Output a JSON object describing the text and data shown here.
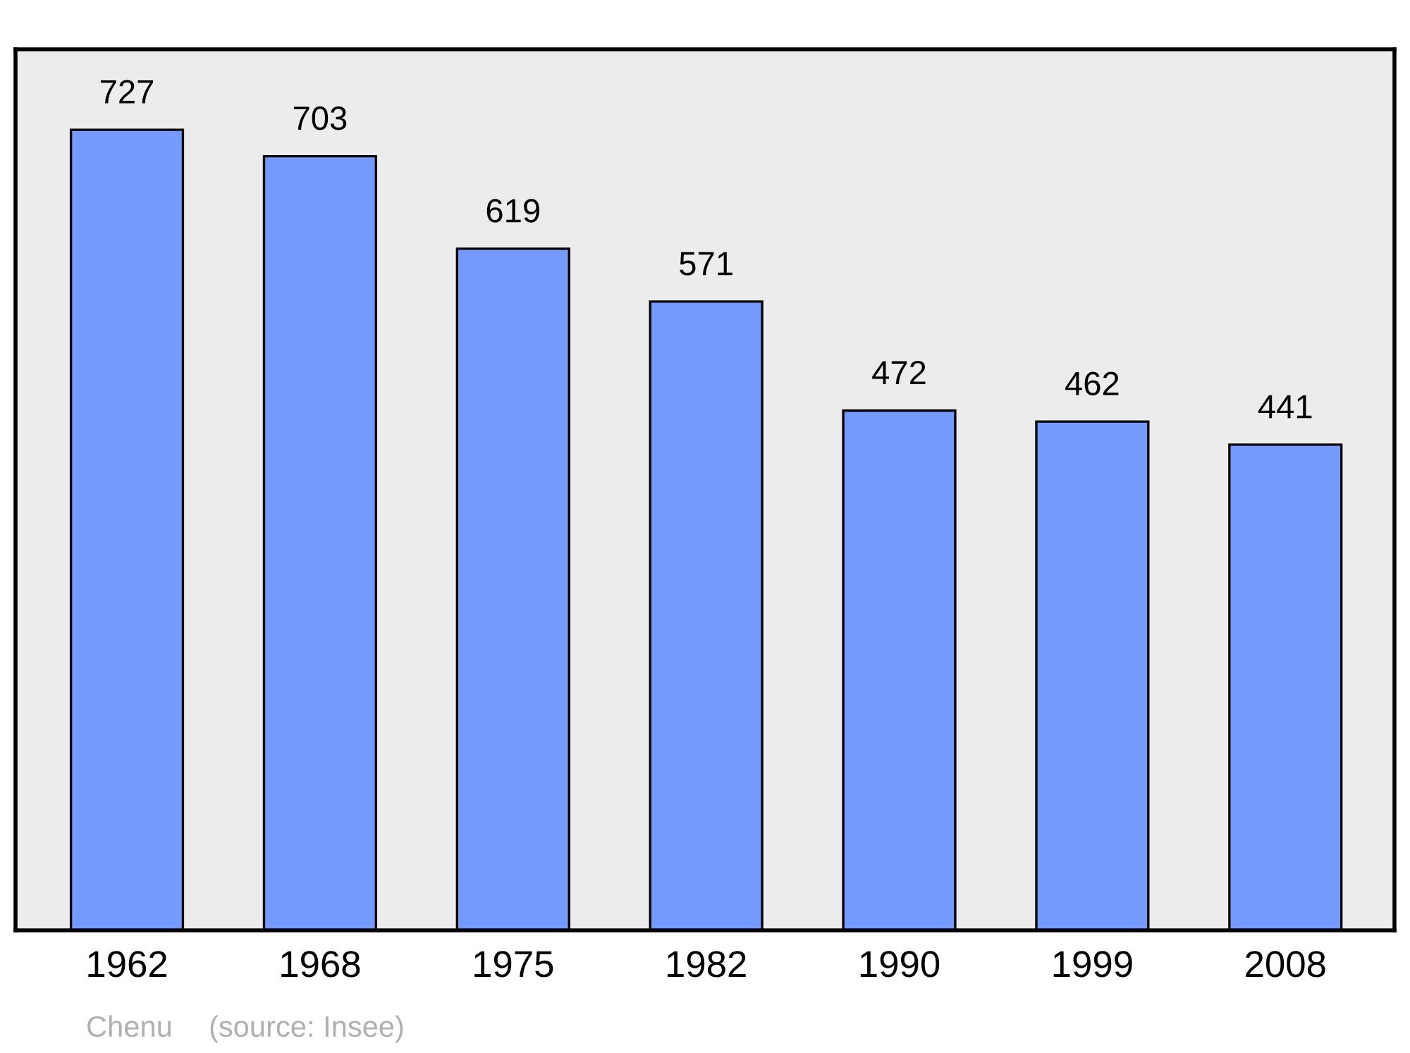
{
  "chart_data": {
    "type": "bar",
    "categories": [
      "1962",
      "1968",
      "1975",
      "1982",
      "1990",
      "1999",
      "2008"
    ],
    "values": [
      727,
      703,
      619,
      571,
      472,
      462,
      441
    ],
    "color": "#7499ff",
    "ylim": [
      0,
      800
    ],
    "tick_labels": "x",
    "data_labels": true,
    "grid": false,
    "legend": false,
    "annotations": [
      "Chenu",
      "(source: Insee)"
    ]
  }
}
